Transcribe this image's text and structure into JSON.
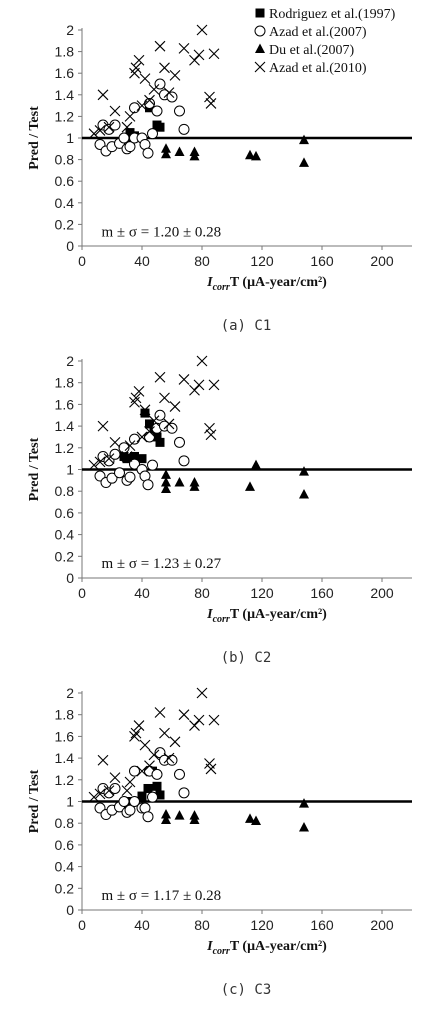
{
  "chart_data": [
    {
      "type": "scatter",
      "caption": "(a) C1",
      "xlabel_main": "I",
      "xlabel_sub": "corr",
      "xlabel_rest": "T (μA-year/cm²)",
      "ylabel": "Pred / Test",
      "xlim": [
        0,
        220
      ],
      "ylim": [
        0,
        2
      ],
      "xticks": [
        "0",
        "40",
        "80",
        "120",
        "160",
        "200"
      ],
      "yticks": [
        "0",
        "0.2",
        "0.4",
        "0.6",
        "0.8",
        "1",
        "1.2",
        "1.4",
        "1.6",
        "1.8",
        "2"
      ],
      "reference_line_y": 1,
      "annotation": "m ± σ = 1.20 ± 0.28",
      "legend_position": "top-right",
      "series": [
        {
          "name": "Rodriguez et al.(1997)",
          "marker": "filled-square",
          "points": [
            [
              30,
              1.0
            ],
            [
              32,
              1.05
            ],
            [
              35,
              1.02
            ],
            [
              45,
              1.28
            ],
            [
              50,
              1.12
            ],
            [
              52,
              1.1
            ]
          ]
        },
        {
          "name": "Azad et al.(2007)",
          "marker": "open-circle",
          "points": [
            [
              12,
              0.94
            ],
            [
              14,
              1.12
            ],
            [
              16,
              0.88
            ],
            [
              18,
              1.08
            ],
            [
              20,
              0.92
            ],
            [
              22,
              1.12
            ],
            [
              25,
              0.95
            ],
            [
              28,
              1.0
            ],
            [
              30,
              0.9
            ],
            [
              32,
              0.92
            ],
            [
              35,
              1.0
            ],
            [
              35,
              1.28
            ],
            [
              40,
              1.0
            ],
            [
              42,
              0.94
            ],
            [
              44,
              0.86
            ],
            [
              45,
              1.32
            ],
            [
              47,
              1.04
            ],
            [
              50,
              1.25
            ],
            [
              52,
              1.5
            ],
            [
              55,
              1.4
            ],
            [
              60,
              1.38
            ],
            [
              65,
              1.25
            ],
            [
              68,
              1.08
            ]
          ]
        },
        {
          "name": "Du et al.(2007)",
          "marker": "filled-triangle",
          "points": [
            [
              56,
              0.9
            ],
            [
              56,
              0.85
            ],
            [
              65,
              0.87
            ],
            [
              75,
              0.87
            ],
            [
              75,
              0.83
            ],
            [
              112,
              0.84
            ],
            [
              116,
              0.83
            ],
            [
              148,
              0.98
            ],
            [
              148,
              0.77
            ]
          ]
        },
        {
          "name": "Azad et al.(2010)",
          "marker": "x",
          "points": [
            [
              8,
              1.04
            ],
            [
              12,
              1.07
            ],
            [
              14,
              1.4
            ],
            [
              18,
              1.1
            ],
            [
              22,
              1.25
            ],
            [
              30,
              1.1
            ],
            [
              32,
              1.2
            ],
            [
              35,
              1.6
            ],
            [
              36,
              1.65
            ],
            [
              38,
              1.72
            ],
            [
              40,
              1.3
            ],
            [
              42,
              1.55
            ],
            [
              45,
              1.35
            ],
            [
              48,
              1.45
            ],
            [
              52,
              1.85
            ],
            [
              55,
              1.65
            ],
            [
              58,
              1.42
            ],
            [
              62,
              1.58
            ],
            [
              68,
              1.83
            ],
            [
              75,
              1.72
            ],
            [
              78,
              1.77
            ],
            [
              80,
              2.0
            ],
            [
              85,
              1.38
            ],
            [
              86,
              1.32
            ],
            [
              88,
              1.78
            ]
          ]
        }
      ]
    },
    {
      "type": "scatter",
      "caption": "(b) C2",
      "xlabel_main": "I",
      "xlabel_sub": "corr",
      "xlabel_rest": "T (μA-year/cm²)",
      "ylabel": "Pred / Test",
      "xlim": [
        0,
        220
      ],
      "ylim": [
        0,
        2
      ],
      "xticks": [
        "0",
        "40",
        "80",
        "120",
        "160",
        "200"
      ],
      "yticks": [
        "0",
        "0.2",
        "0.4",
        "0.6",
        "0.8",
        "1",
        "1.2",
        "1.4",
        "1.6",
        "1.8",
        "2"
      ],
      "reference_line_y": 1,
      "annotation": "m ± σ = 1.23 ± 0.27",
      "series": [
        {
          "name": "Rodriguez et al.(1997)",
          "marker": "filled-square",
          "points": [
            [
              28,
              1.12
            ],
            [
              30,
              1.1
            ],
            [
              35,
              1.12
            ],
            [
              40,
              1.1
            ],
            [
              42,
              1.52
            ],
            [
              45,
              1.42
            ],
            [
              48,
              1.38
            ],
            [
              50,
              1.3
            ],
            [
              52,
              1.25
            ]
          ]
        },
        {
          "name": "Azad et al.(2007)",
          "marker": "open-circle",
          "points": [
            [
              12,
              0.94
            ],
            [
              14,
              1.12
            ],
            [
              16,
              0.88
            ],
            [
              18,
              1.08
            ],
            [
              20,
              0.92
            ],
            [
              22,
              1.14
            ],
            [
              25,
              0.97
            ],
            [
              28,
              1.2
            ],
            [
              30,
              0.9
            ],
            [
              32,
              0.93
            ],
            [
              35,
              1.05
            ],
            [
              35,
              1.28
            ],
            [
              40,
              1.0
            ],
            [
              42,
              0.94
            ],
            [
              44,
              0.86
            ],
            [
              45,
              1.3
            ],
            [
              47,
              1.04
            ],
            [
              50,
              1.38
            ],
            [
              52,
              1.5
            ],
            [
              55,
              1.4
            ],
            [
              60,
              1.38
            ],
            [
              65,
              1.25
            ],
            [
              68,
              1.08
            ]
          ]
        },
        {
          "name": "Du et al.(2007)",
          "marker": "filled-triangle",
          "points": [
            [
              56,
              0.95
            ],
            [
              56,
              0.88
            ],
            [
              56,
              0.82
            ],
            [
              65,
              0.88
            ],
            [
              75,
              0.88
            ],
            [
              75,
              0.84
            ],
            [
              112,
              0.84
            ],
            [
              116,
              1.04
            ],
            [
              148,
              0.98
            ],
            [
              148,
              0.77
            ]
          ]
        },
        {
          "name": "Azad et al.(2010)",
          "marker": "x",
          "points": [
            [
              8,
              1.04
            ],
            [
              12,
              1.07
            ],
            [
              14,
              1.4
            ],
            [
              18,
              1.1
            ],
            [
              22,
              1.25
            ],
            [
              30,
              1.12
            ],
            [
              32,
              1.22
            ],
            [
              35,
              1.62
            ],
            [
              36,
              1.66
            ],
            [
              38,
              1.72
            ],
            [
              40,
              1.3
            ],
            [
              42,
              1.55
            ],
            [
              45,
              1.35
            ],
            [
              48,
              1.45
            ],
            [
              52,
              1.85
            ],
            [
              55,
              1.66
            ],
            [
              58,
              1.42
            ],
            [
              62,
              1.58
            ],
            [
              68,
              1.83
            ],
            [
              75,
              1.73
            ],
            [
              78,
              1.78
            ],
            [
              80,
              2.0
            ],
            [
              85,
              1.38
            ],
            [
              86,
              1.32
            ],
            [
              88,
              1.78
            ]
          ]
        }
      ]
    },
    {
      "type": "scatter",
      "caption": "(c) C3",
      "xlabel_main": "I",
      "xlabel_sub": "corr",
      "xlabel_rest": "T (μA-year/cm²)",
      "ylabel": "Pred / Test",
      "xlim": [
        0,
        220
      ],
      "ylim": [
        0,
        2
      ],
      "xticks": [
        "0",
        "40",
        "80",
        "120",
        "160",
        "200"
      ],
      "yticks": [
        "0",
        "0.2",
        "0.4",
        "0.6",
        "0.8",
        "1",
        "1.2",
        "1.4",
        "1.6",
        "1.8",
        "2"
      ],
      "reference_line_y": 1,
      "annotation": "m ± σ = 1.17 ± 0.28",
      "series": [
        {
          "name": "Rodriguez et al.(1997)",
          "marker": "filled-square",
          "points": [
            [
              30,
              0.98
            ],
            [
              32,
              1.0
            ],
            [
              35,
              1.0
            ],
            [
              40,
              1.05
            ],
            [
              44,
              1.12
            ],
            [
              47,
              1.28
            ],
            [
              50,
              1.14
            ],
            [
              52,
              1.06
            ]
          ]
        },
        {
          "name": "Azad et al.(2007)",
          "marker": "open-circle",
          "points": [
            [
              12,
              0.94
            ],
            [
              14,
              1.12
            ],
            [
              16,
              0.88
            ],
            [
              18,
              1.08
            ],
            [
              20,
              0.92
            ],
            [
              22,
              1.12
            ],
            [
              25,
              0.95
            ],
            [
              28,
              1.0
            ],
            [
              30,
              0.9
            ],
            [
              32,
              0.92
            ],
            [
              35,
              1.0
            ],
            [
              35,
              1.28
            ],
            [
              40,
              0.94
            ],
            [
              42,
              0.94
            ],
            [
              44,
              0.86
            ],
            [
              45,
              1.28
            ],
            [
              47,
              1.04
            ],
            [
              50,
              1.25
            ],
            [
              52,
              1.45
            ],
            [
              55,
              1.38
            ],
            [
              60,
              1.38
            ],
            [
              65,
              1.25
            ],
            [
              68,
              1.08
            ]
          ]
        },
        {
          "name": "Du et al.(2007)",
          "marker": "filled-triangle",
          "points": [
            [
              56,
              0.88
            ],
            [
              56,
              0.83
            ],
            [
              65,
              0.87
            ],
            [
              75,
              0.87
            ],
            [
              75,
              0.83
            ],
            [
              112,
              0.84
            ],
            [
              116,
              0.82
            ],
            [
              148,
              0.98
            ],
            [
              148,
              0.76
            ]
          ]
        },
        {
          "name": "Azad et al.(2010)",
          "marker": "x",
          "points": [
            [
              8,
              1.04
            ],
            [
              12,
              1.07
            ],
            [
              14,
              1.38
            ],
            [
              18,
              1.1
            ],
            [
              22,
              1.22
            ],
            [
              30,
              1.1
            ],
            [
              32,
              1.18
            ],
            [
              35,
              1.6
            ],
            [
              36,
              1.63
            ],
            [
              38,
              1.7
            ],
            [
              40,
              1.28
            ],
            [
              42,
              1.52
            ],
            [
              45,
              1.33
            ],
            [
              48,
              1.43
            ],
            [
              52,
              1.82
            ],
            [
              55,
              1.63
            ],
            [
              58,
              1.4
            ],
            [
              62,
              1.55
            ],
            [
              68,
              1.8
            ],
            [
              75,
              1.7
            ],
            [
              78,
              1.75
            ],
            [
              80,
              2.0
            ],
            [
              85,
              1.35
            ],
            [
              86,
              1.3
            ],
            [
              88,
              1.75
            ]
          ]
        }
      ]
    }
  ]
}
